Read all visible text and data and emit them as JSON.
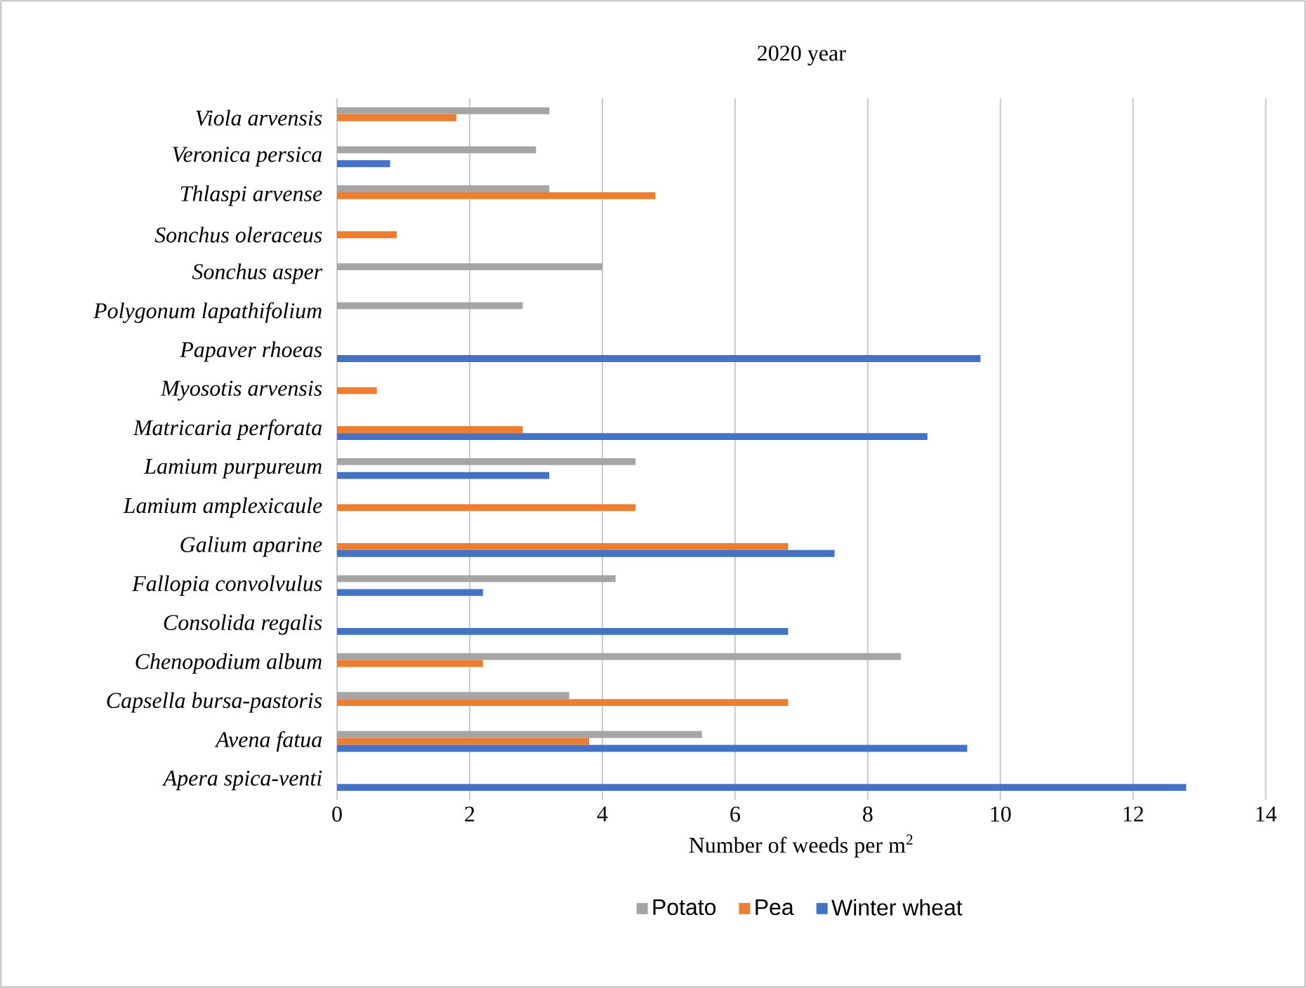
{
  "chart_data": {
    "type": "bar",
    "orientation": "horizontal",
    "title": "2020 year",
    "xlabel": "Number of weeds per m$^{2}$",
    "categories": [
      "Viola arvensis",
      "Veronica persica",
      "Thlaspi arvense",
      "Sonchus oleraceus",
      "Sonchus asper",
      "Polygonum lapathifolium",
      "Papaver rhoeas",
      "Myosotis arvensis",
      "Matricaria perforata",
      "Lamium purpureum",
      "Lamium amplexicaule",
      "Galium aparine",
      "Fallopia convolvulus",
      "Consolida regalis",
      "Chenopodium album",
      "Capsella bursa-pastoris",
      "Avena fatua",
      "Apera spica-venti"
    ],
    "series": [
      {
        "name": "Potato",
        "color": "#a5a5a5",
        "values": [
          3.2,
          3.0,
          3.2,
          null,
          4.0,
          2.8,
          null,
          null,
          null,
          4.5,
          null,
          null,
          4.2,
          null,
          8.5,
          3.5,
          5.5,
          null
        ]
      },
      {
        "name": "Pea",
        "color": "#ed7d31",
        "values": [
          1.8,
          null,
          4.8,
          0.9,
          null,
          null,
          null,
          0.6,
          2.8,
          null,
          4.5,
          6.8,
          null,
          null,
          2.2,
          6.8,
          3.8,
          null
        ]
      },
      {
        "name": "Winter wheat",
        "color": "#4472c4",
        "values": [
          null,
          0.8,
          null,
          null,
          null,
          null,
          9.7,
          null,
          8.9,
          3.2,
          null,
          7.5,
          2.2,
          6.8,
          null,
          null,
          9.5,
          12.8
        ]
      }
    ],
    "xlim": [
      0,
      14
    ],
    "xticks": [
      0,
      2,
      4,
      6,
      8,
      10,
      12,
      14
    ],
    "grid": "x",
    "legend": "bottom"
  }
}
